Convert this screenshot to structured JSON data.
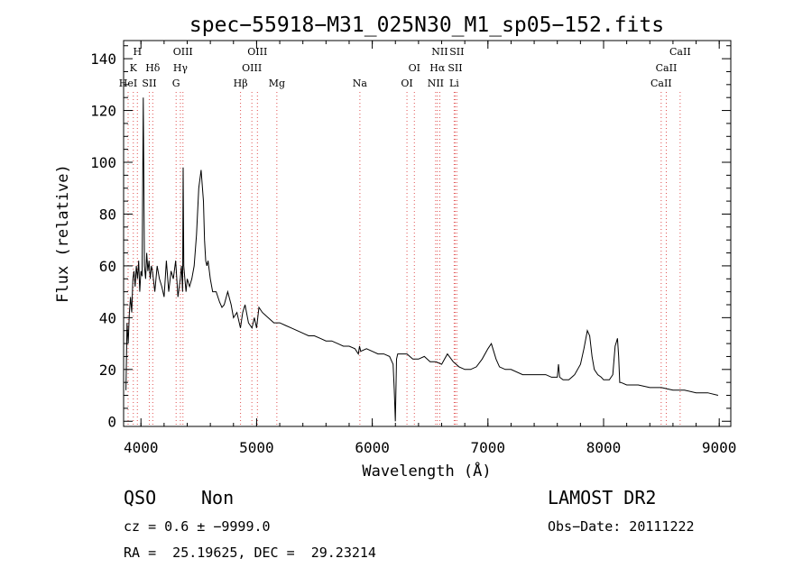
{
  "chart_data": {
    "type": "line",
    "title": "spec−55918−M31_025N30_M1_sp05−152.fits",
    "xlabel": "Wavelength (Å)",
    "ylabel": "Flux (relative)",
    "xlim": [
      3850,
      9100
    ],
    "ylim": [
      -2,
      147
    ],
    "xticks": [
      4000,
      5000,
      6000,
      7000,
      8000,
      9000
    ],
    "yticks": [
      0,
      20,
      40,
      60,
      80,
      100,
      120,
      140
    ],
    "grid": false,
    "series": [
      {
        "x": [
          3870,
          3880,
          3890,
          3900,
          3910,
          3920,
          3930,
          3940,
          3950,
          3960,
          3970,
          3980,
          3990,
          4000,
          4010,
          4020,
          4030,
          4040,
          4050,
          4060,
          4070,
          4080,
          4090,
          4100,
          4120,
          4140,
          4160,
          4180,
          4200,
          4220,
          4240,
          4260,
          4280,
          4300,
          4320,
          4340,
          4350,
          4360,
          4365,
          4370,
          4380,
          4390,
          4400,
          4420,
          4440,
          4460,
          4480,
          4500,
          4520,
          4540,
          4550,
          4560,
          4570,
          4580,
          4600,
          4620,
          4650,
          4680,
          4700,
          4720,
          4750,
          4780,
          4800,
          4830,
          4860,
          4880,
          4900,
          4930,
          4960,
          4980,
          5000,
          5010,
          5020,
          5050,
          5100,
          5150,
          5200,
          5250,
          5300,
          5350,
          5400,
          5450,
          5500,
          5550,
          5600,
          5650,
          5700,
          5750,
          5800,
          5850,
          5880,
          5890,
          5900,
          5950,
          6000,
          6050,
          6100,
          6150,
          6180,
          6190,
          6200,
          6210,
          6220,
          6250,
          6300,
          6350,
          6400,
          6450,
          6500,
          6550,
          6600,
          6650,
          6700,
          6750,
          6800,
          6850,
          6900,
          6950,
          7000,
          7030,
          7050,
          7070,
          7100,
          7150,
          7200,
          7300,
          7400,
          7500,
          7550,
          7600,
          7610,
          7620,
          7650,
          7700,
          7750,
          7800,
          7830,
          7860,
          7880,
          7900,
          7920,
          7950,
          7980,
          8000,
          8050,
          8080,
          8100,
          8120,
          8130,
          8140,
          8150,
          8200,
          8300,
          8400,
          8500,
          8600,
          8700,
          8800,
          8900,
          8990
        ],
        "y": [
          12,
          38,
          30,
          42,
          48,
          42,
          55,
          58,
          52,
          60,
          55,
          62,
          50,
          58,
          56,
          125,
          60,
          55,
          65,
          58,
          62,
          55,
          60,
          58,
          50,
          60,
          55,
          52,
          48,
          62,
          50,
          58,
          55,
          62,
          48,
          55,
          60,
          50,
          98,
          60,
          55,
          50,
          55,
          52,
          55,
          60,
          72,
          90,
          97,
          85,
          70,
          62,
          60,
          62,
          55,
          50,
          50,
          46,
          44,
          45,
          50,
          45,
          40,
          42,
          36,
          42,
          45,
          38,
          36,
          40,
          36,
          40,
          44,
          42,
          40,
          38,
          38,
          37,
          36,
          35,
          34,
          33,
          33,
          32,
          31,
          31,
          30,
          29,
          29,
          28,
          26,
          29,
          27,
          28,
          27,
          26,
          26,
          25,
          22,
          12,
          0,
          24,
          26,
          26,
          26,
          24,
          24,
          25,
          23,
          23,
          22,
          26,
          23,
          21,
          20,
          20,
          21,
          24,
          28,
          30,
          27,
          24,
          21,
          20,
          20,
          18,
          18,
          18,
          17,
          17,
          22,
          17,
          16,
          16,
          18,
          22,
          28,
          35,
          33,
          25,
          20,
          18,
          17,
          16,
          16,
          18,
          29,
          32,
          25,
          15,
          15,
          14,
          14,
          13,
          13,
          12,
          12,
          11,
          11,
          10
        ]
      }
    ],
    "line_markers": [
      {
        "wave": 3889,
        "labels": [
          "HeI"
        ]
      },
      {
        "wave": 3934,
        "labels": [
          "K"
        ]
      },
      {
        "wave": 3969,
        "labels": [
          "H"
        ]
      },
      {
        "wave": 4072,
        "labels": [
          "SII"
        ]
      },
      {
        "wave": 4102,
        "labels": [
          "Hδ"
        ]
      },
      {
        "wave": 4304,
        "labels": [
          "G"
        ]
      },
      {
        "wave": 4341,
        "labels": [
          "Hγ"
        ]
      },
      {
        "wave": 4363,
        "labels": [
          "OIII"
        ]
      },
      {
        "wave": 4861,
        "labels": [
          "Hβ"
        ]
      },
      {
        "wave": 4959,
        "labels": [
          "OIII"
        ]
      },
      {
        "wave": 5007,
        "labels": [
          "OIII"
        ]
      },
      {
        "wave": 5175,
        "labels": [
          "Mg"
        ]
      },
      {
        "wave": 5893,
        "labels": [
          "Na"
        ]
      },
      {
        "wave": 6300,
        "labels": [
          "OI"
        ]
      },
      {
        "wave": 6364,
        "labels": [
          "OI"
        ]
      },
      {
        "wave": 6548,
        "labels": [
          "NII"
        ]
      },
      {
        "wave": 6563,
        "labels": [
          "Hα"
        ]
      },
      {
        "wave": 6584,
        "labels": [
          "NII"
        ]
      },
      {
        "wave": 6708,
        "labels": [
          "Li"
        ]
      },
      {
        "wave": 6717,
        "labels": [
          "SII"
        ]
      },
      {
        "wave": 6731,
        "labels": [
          "SII"
        ]
      },
      {
        "wave": 8498,
        "labels": [
          "CaII"
        ]
      },
      {
        "wave": 8542,
        "labels": [
          "CaII"
        ]
      },
      {
        "wave": 8662,
        "labels": [
          "CaII"
        ]
      }
    ]
  },
  "info": {
    "class": "QSO",
    "subclass": "Non",
    "survey": "LAMOST DR2",
    "cz": "cz = 0.6 ± −9999.0",
    "obs_date": "Obs−Date: 20111222",
    "radec": "RA =  25.19625, DEC =  29.23214"
  }
}
